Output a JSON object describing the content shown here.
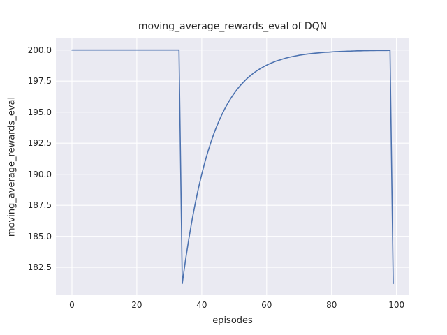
{
  "figure": {
    "title": "moving_average_rewards_eval of DQN",
    "xlabel": "episodes",
    "ylabel": "moving_average_rewards_eval"
  },
  "chart_data": {
    "type": "line",
    "title": "moving_average_rewards_eval of DQN",
    "xlabel": "episodes",
    "ylabel": "moving_average_rewards_eval",
    "xlim": [
      -4.95,
      103.95
    ],
    "ylim": [
      180.26,
      200.94
    ],
    "xticks": [
      0,
      20,
      40,
      60,
      80,
      100
    ],
    "yticks": [
      182.5,
      185.0,
      187.5,
      190.0,
      192.5,
      195.0,
      197.5,
      200.0
    ],
    "grid": true,
    "legend": null,
    "style": {
      "background": "#eaeaf2",
      "grid_color": "#ffffff",
      "line_color": "#4c72b0",
      "text_color": "#262626"
    },
    "series": [
      {
        "name": "moving_average_rewards_eval",
        "x": [
          0,
          1,
          2,
          3,
          4,
          5,
          6,
          7,
          8,
          9,
          10,
          11,
          12,
          13,
          14,
          15,
          16,
          17,
          18,
          19,
          20,
          21,
          22,
          23,
          24,
          25,
          26,
          27,
          28,
          29,
          30,
          31,
          32,
          33,
          34,
          35,
          36,
          37,
          38,
          39,
          40,
          41,
          42,
          43,
          44,
          45,
          46,
          47,
          48,
          49,
          50,
          51,
          52,
          53,
          54,
          55,
          56,
          57,
          58,
          59,
          60,
          61,
          62,
          63,
          64,
          65,
          66,
          67,
          68,
          69,
          70,
          71,
          72,
          73,
          74,
          75,
          76,
          77,
          78,
          79,
          80,
          81,
          82,
          83,
          84,
          85,
          86,
          87,
          88,
          89,
          90,
          91,
          92,
          93,
          94,
          95,
          96,
          97,
          98,
          99
        ],
        "y": [
          200,
          200,
          200,
          200,
          200,
          200,
          200,
          200,
          200,
          200,
          200,
          200,
          200,
          200,
          200,
          200,
          200,
          200,
          200,
          200,
          200,
          200,
          200,
          200,
          200,
          200,
          200,
          200,
          200,
          200,
          200,
          200,
          200,
          200,
          181.2,
          183.08,
          184.77,
          186.29,
          187.66,
          188.9,
          190.01,
          191.01,
          191.91,
          192.72,
          193.45,
          194.1,
          194.69,
          195.22,
          195.7,
          196.13,
          196.52,
          196.87,
          197.18,
          197.46,
          197.72,
          197.94,
          198.15,
          198.33,
          198.5,
          198.65,
          198.79,
          198.91,
          199.02,
          199.12,
          199.2,
          199.28,
          199.36,
          199.42,
          199.48,
          199.53,
          199.58,
          199.62,
          199.66,
          199.69,
          199.72,
          199.75,
          199.77,
          199.8,
          199.82,
          199.83,
          199.85,
          199.87,
          199.88,
          199.89,
          199.9,
          199.91,
          199.92,
          199.93,
          199.94,
          199.94,
          199.95,
          199.95,
          199.96,
          199.96,
          199.97,
          199.97,
          199.97,
          199.97,
          199.98,
          181.2
        ]
      }
    ]
  }
}
